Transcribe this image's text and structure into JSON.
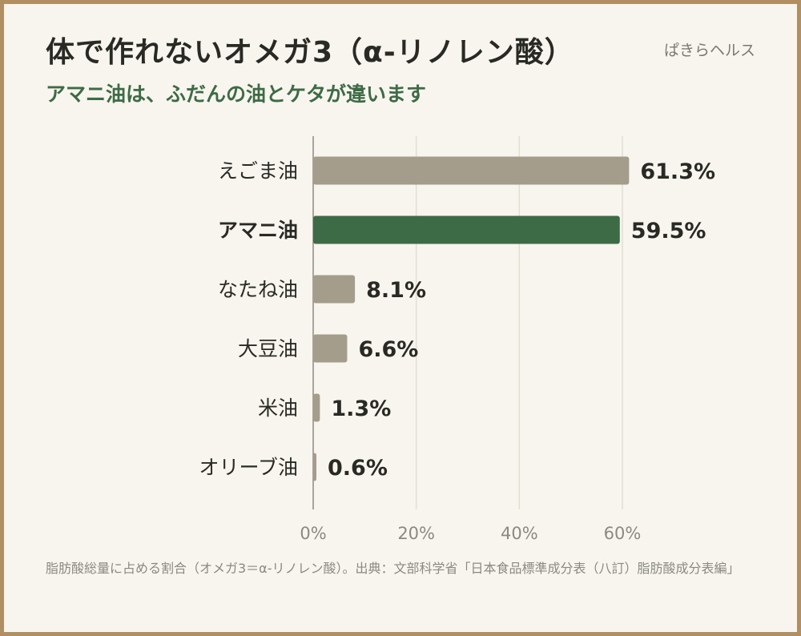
{
  "header": {
    "title": "体で作れないオメガ3（α-リノレン酸）",
    "brand": "ぱきらヘルス",
    "subtitle": "アマニ油は、ふだんの油とケタが違います"
  },
  "footnote": "脂肪酸総量に占める割合（オメガ3＝α-リノレン酸）。出典：文部科学省「日本食品標準成分表（八訂）脂肪酸成分表編」",
  "colors": {
    "background": "#f8f5ee",
    "frame": "#b08f63",
    "bar_default": "#a59d8c",
    "bar_highlight": "#3d6b45",
    "subtitle": "#3d6b45",
    "grid": "#e3ded3"
  },
  "chart_data": {
    "type": "bar",
    "orientation": "horizontal",
    "categories": [
      "えごま油",
      "アマニ油",
      "なたね油",
      "大豆油",
      "米油",
      "オリーブ油"
    ],
    "values": [
      61.3,
      59.5,
      8.1,
      6.6,
      1.3,
      0.6
    ],
    "value_labels": [
      "61.3%",
      "59.5%",
      "8.1%",
      "6.6%",
      "1.3%",
      "0.6%"
    ],
    "highlight": "アマニ油",
    "xlim": [
      0,
      60
    ],
    "xticks": [
      0,
      20,
      40,
      60
    ],
    "xtick_labels": [
      "0%",
      "20%",
      "40%",
      "60%"
    ],
    "grid": true,
    "legend": "none"
  }
}
